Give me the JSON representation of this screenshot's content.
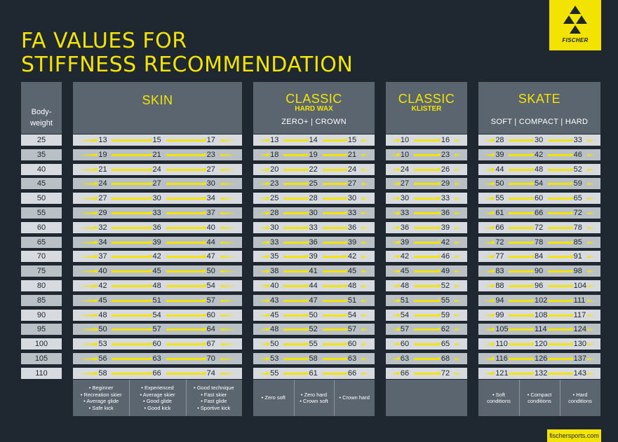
{
  "title": {
    "line1": "FA VALUES FOR",
    "line2": "STIFFNESS RECOMMENDATION"
  },
  "brand": {
    "name": "FISCHER",
    "website": "fischersports.com"
  },
  "bodyweight": {
    "label_line1": "Body-",
    "label_line2": "weight",
    "values": [
      "25",
      "35",
      "40",
      "45",
      "50",
      "55",
      "60",
      "65",
      "70",
      "75",
      "80",
      "85",
      "90",
      "95",
      "100",
      "105",
      "110"
    ]
  },
  "skin": {
    "title": "SKIN",
    "rows": [
      [
        "13",
        "15",
        "17"
      ],
      [
        "19",
        "21",
        "23"
      ],
      [
        "21",
        "24",
        "27"
      ],
      [
        "24",
        "27",
        "30"
      ],
      [
        "27",
        "30",
        "34"
      ],
      [
        "29",
        "33",
        "37"
      ],
      [
        "32",
        "36",
        "40"
      ],
      [
        "34",
        "39",
        "44"
      ],
      [
        "37",
        "42",
        "47"
      ],
      [
        "40",
        "45",
        "50"
      ],
      [
        "42",
        "48",
        "54"
      ],
      [
        "45",
        "51",
        "57"
      ],
      [
        "48",
        "54",
        "60"
      ],
      [
        "50",
        "57",
        "64"
      ],
      [
        "53",
        "60",
        "67"
      ],
      [
        "56",
        "63",
        "70"
      ],
      [
        "58",
        "66",
        "74"
      ]
    ],
    "footer": [
      [
        "• Beginner",
        "• Recreation skier",
        "• Average glide",
        "• Safe kick"
      ],
      [
        "• Experienced",
        "• Average skier",
        "• Good glide",
        "• Good kick"
      ],
      [
        "• Good technique",
        "• Fast skier",
        "• Fast glide",
        "• Sportive kick"
      ]
    ]
  },
  "classic_hardwax": {
    "title": "CLASSIC",
    "subtitle": "HARD WAX",
    "columns": "ZERO+  |  CROWN",
    "rows": [
      [
        "13",
        "14",
        "15"
      ],
      [
        "18",
        "19",
        "21"
      ],
      [
        "20",
        "22",
        "24"
      ],
      [
        "23",
        "25",
        "27"
      ],
      [
        "25",
        "28",
        "30"
      ],
      [
        "28",
        "30",
        "33"
      ],
      [
        "30",
        "33",
        "36"
      ],
      [
        "33",
        "36",
        "39"
      ],
      [
        "35",
        "39",
        "42"
      ],
      [
        "38",
        "41",
        "45"
      ],
      [
        "40",
        "44",
        "48"
      ],
      [
        "43",
        "47",
        "51"
      ],
      [
        "45",
        "50",
        "54"
      ],
      [
        "48",
        "52",
        "57"
      ],
      [
        "50",
        "55",
        "60"
      ],
      [
        "53",
        "58",
        "63"
      ],
      [
        "55",
        "61",
        "66"
      ]
    ],
    "footer": [
      [
        "• Zero soft"
      ],
      [
        "• Zero hard",
        "• Crown soft"
      ],
      [
        "• Crown hard"
      ]
    ]
  },
  "classic_klister": {
    "title": "CLASSIC",
    "subtitle": "KLISTER",
    "rows": [
      [
        "10",
        "16"
      ],
      [
        "10",
        "23"
      ],
      [
        "24",
        "26"
      ],
      [
        "27",
        "29"
      ],
      [
        "30",
        "33"
      ],
      [
        "33",
        "36"
      ],
      [
        "36",
        "39"
      ],
      [
        "39",
        "42"
      ],
      [
        "42",
        "46"
      ],
      [
        "45",
        "49"
      ],
      [
        "48",
        "52"
      ],
      [
        "51",
        "55"
      ],
      [
        "54",
        "59"
      ],
      [
        "57",
        "62"
      ],
      [
        "60",
        "65"
      ],
      [
        "63",
        "68"
      ],
      [
        "66",
        "72"
      ]
    ]
  },
  "skate": {
    "title": "SKATE",
    "columns": "SOFT  |  COMPACT  |  HARD",
    "rows": [
      [
        "28",
        "30",
        "33"
      ],
      [
        "39",
        "42",
        "46"
      ],
      [
        "44",
        "48",
        "52"
      ],
      [
        "50",
        "54",
        "59"
      ],
      [
        "55",
        "60",
        "65"
      ],
      [
        "61",
        "66",
        "72"
      ],
      [
        "66",
        "72",
        "78"
      ],
      [
        "72",
        "78",
        "85"
      ],
      [
        "77",
        "84",
        "91"
      ],
      [
        "83",
        "90",
        "98"
      ],
      [
        "88",
        "96",
        "104"
      ],
      [
        "94",
        "102",
        "111"
      ],
      [
        "99",
        "108",
        "117"
      ],
      [
        "105",
        "114",
        "124"
      ],
      [
        "110",
        "120",
        "130"
      ],
      [
        "116",
        "126",
        "137"
      ],
      [
        "121",
        "132",
        "143"
      ]
    ],
    "footer": [
      [
        "• Soft",
        "conditions"
      ],
      [
        "• Compact",
        "conditions"
      ],
      [
        "• Hard",
        "conditions"
      ]
    ]
  },
  "colors": {
    "accent": "#f2e400",
    "background": "#1f2730",
    "header": "#5b6570",
    "row_light": "#d7dbdf",
    "row_dark": "#b9c0c6"
  }
}
